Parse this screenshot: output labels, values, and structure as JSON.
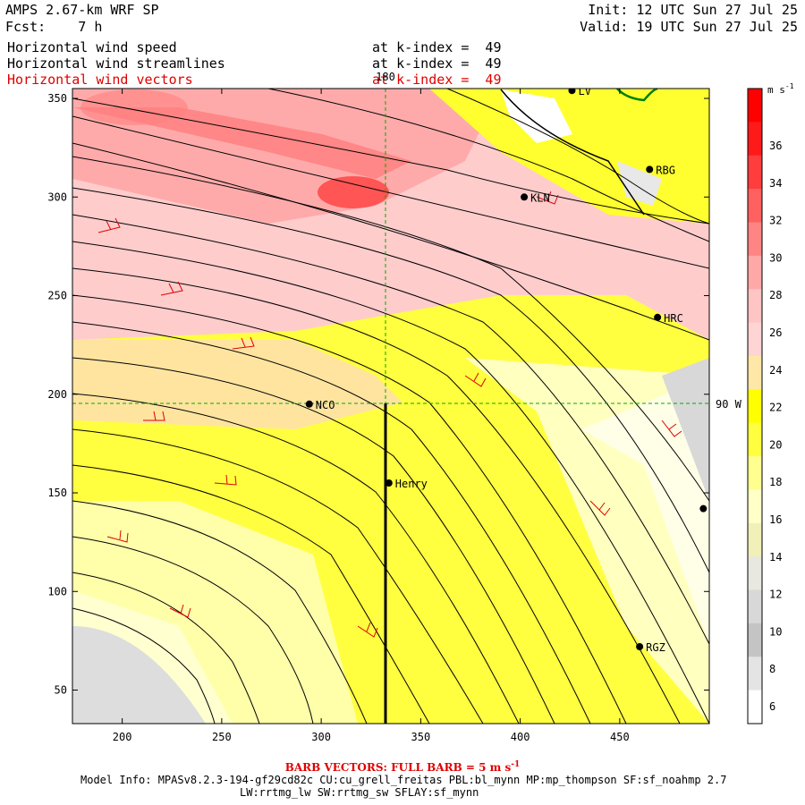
{
  "header": {
    "model_title": "AMPS 2.67-km WRF SP",
    "fcst_label": "Fcst:",
    "fcst_value": "7 h",
    "init": "Init: 12 UTC Sun 27 Jul 25",
    "valid": "Valid: 19 UTC Sun 27 Jul 25"
  },
  "fields": [
    {
      "name": "Horizontal wind speed",
      "k_text": "at k-index =  49",
      "color": "#000000"
    },
    {
      "name": "Horizontal wind streamlines",
      "k_text": "at k-index =  49",
      "color": "#000000"
    },
    {
      "name": "Horizontal wind vectors",
      "k_text": "at k-index =  49",
      "color": "#e00000"
    }
  ],
  "axes": {
    "x_ticks": [
      200,
      250,
      300,
      350,
      400,
      450
    ],
    "y_ticks": [
      50,
      100,
      150,
      200,
      250,
      300,
      350
    ],
    "x_range": [
      175,
      495
    ],
    "y_range": [
      33,
      355
    ]
  },
  "meridian_label": "180",
  "parallel_label": "90 W",
  "stations": [
    {
      "name": "NCO",
      "x": 294,
      "y": 195
    },
    {
      "name": "Henry",
      "x": 334,
      "y": 155
    },
    {
      "name": "KLN",
      "x": 402,
      "y": 300
    },
    {
      "name": "RBG",
      "x": 465,
      "y": 314
    },
    {
      "name": "HRC",
      "x": 469,
      "y": 239
    },
    {
      "name": "RGZ",
      "x": 460,
      "y": 72
    },
    {
      "name": "LV",
      "x": 426,
      "y": 354
    },
    {
      "name": "",
      "x": 492,
      "y": 142
    }
  ],
  "colorbar": {
    "units": "m s",
    "units_exp": "-1",
    "labels": [
      "36",
      "34",
      "32",
      "30",
      "28",
      "26",
      "24",
      "22",
      "20",
      "18",
      "16",
      "14",
      "12",
      "10",
      "8",
      "6"
    ],
    "colors": [
      "#ff0000",
      "#ff1a1a",
      "#ff3d3d",
      "#ff6060",
      "#ff8585",
      "#ffa8a8",
      "#ffc4c4",
      "#ffd4d4",
      "#ffe7a8",
      "#ffff00",
      "#ffff40",
      "#ffff90",
      "#ffffc8",
      "#f0f0b8",
      "#e8e8e0",
      "#d8d8d8",
      "#c4c4c4",
      "#e4e4e4",
      "#ffffff"
    ]
  },
  "footer": {
    "barb_text": "BARB VECTORS:  FULL BARB = 5 m s",
    "barb_exp": "-1",
    "model_info": "Model Info: MPASv8.2.3-194-gf29cd82c CU:cu_grell_freitas PBL:bl_mynn MP:mp_thompson SF:sf_noahmp 2.7",
    "model_info2": "LW:rrtmg_lw SW:rrtmg_sw SFLAY:sf_mynn"
  },
  "colors": {
    "field_red": "#e00000",
    "guide_green": "#00aa00",
    "coast_green": "#008000"
  }
}
